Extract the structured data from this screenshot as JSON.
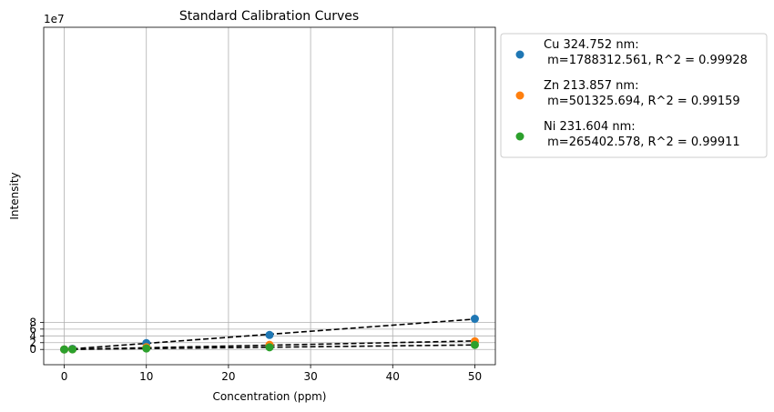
{
  "chart_data": {
    "type": "scatter",
    "title": "Standard Calibration Curves",
    "xlabel": "Concentration (ppm)",
    "ylabel": "Intensity",
    "y_offset_label": "1e7",
    "xlim": [
      -2.5,
      52.5
    ],
    "ylim": [
      -4.5,
      95
    ],
    "y_units_scale": 10000000,
    "xticks": [
      0,
      10,
      20,
      30,
      40,
      50
    ],
    "yticks": [
      0,
      2,
      4,
      6,
      8
    ],
    "grid": true,
    "legend_position": "outside-upper-right",
    "fit_line_color": "#000000",
    "fit_line_style": "dashed",
    "series": [
      {
        "name": "Cu 324.752 nm:",
        "name_line2": " m=1788312.561, R^2 = 0.99928",
        "color": "#1f77b4",
        "x": [
          0,
          1,
          10,
          25,
          50
        ],
        "y": [
          0.0,
          0.2,
          1.87,
          4.27,
          9.03
        ],
        "fit": {
          "slope": 0.1788312561,
          "intercept": 0.0
        }
      },
      {
        "name": "Zn 213.857 nm:",
        "name_line2": " m=501325.694, R^2 = 0.99159",
        "color": "#ff7f0e",
        "x": [
          0,
          1,
          10,
          25,
          50
        ],
        "y": [
          0.0,
          0.05,
          0.66,
          1.36,
          2.42
        ],
        "fit": {
          "slope": 0.0501325694,
          "intercept": 0.0
        }
      },
      {
        "name": "Ni 231.604 nm:",
        "name_line2": " m=265402.578, R^2 = 0.99911",
        "color": "#2ca02c",
        "x": [
          0,
          1,
          10,
          25,
          50
        ],
        "y": [
          0.0,
          0.03,
          0.29,
          0.64,
          1.34
        ],
        "fit": {
          "slope": 0.0265402578,
          "intercept": 0.0
        }
      }
    ]
  }
}
